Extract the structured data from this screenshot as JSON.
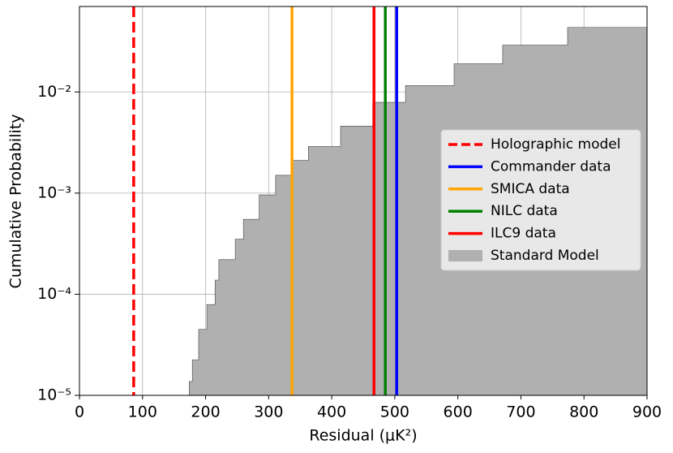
{
  "chart_data": {
    "type": "log_step_area_vlines",
    "xlabel": "Residual (μK²)",
    "ylabel": "Cumulative Probability",
    "xlim": [
      0,
      900
    ],
    "ylim": [
      1e-05,
      0.07
    ],
    "yscale": "log",
    "grid": true,
    "legend": "center right",
    "xticks": [
      0,
      100,
      200,
      300,
      400,
      500,
      600,
      700,
      800,
      900
    ],
    "yticks": [
      {
        "value": 1e-05,
        "label": "10⁻⁵"
      },
      {
        "value": 0.0001,
        "label": "10⁻⁴"
      },
      {
        "value": 0.001,
        "label": "10⁻³"
      },
      {
        "value": 0.01,
        "label": "10⁻²"
      }
    ],
    "series": [
      {
        "name": "Holographic model",
        "color": "#ff0000",
        "linestyle": "dashed",
        "x": 86
      },
      {
        "name": "Commander data",
        "color": "#0000ff",
        "linestyle": "solid",
        "x": 503
      },
      {
        "name": "SMICA data",
        "color": "#ffa500",
        "linestyle": "solid",
        "x": 337
      },
      {
        "name": "NILC data",
        "color": "#008000",
        "linestyle": "solid",
        "x": 485
      },
      {
        "name": "ILC9 data",
        "color": "#ff0000",
        "linestyle": "solid",
        "x": 467
      },
      {
        "name": "Standard Model",
        "color": "#b0b0b0",
        "x": [
          171,
          174,
          179,
          189,
          202,
          215,
          221,
          247,
          260,
          285,
          311,
          337,
          363,
          414,
          465,
          517,
          594,
          671,
          774,
          900
        ],
        "values": [
          1e-05,
          1.37e-05,
          2.25e-05,
          4.5e-05,
          7.9e-05,
          0.000138,
          0.00022,
          0.00035,
          0.00055,
          0.00096,
          0.0015,
          0.0021,
          0.0029,
          0.0046,
          0.0079,
          0.0116,
          0.019,
          0.029,
          0.0435,
          0.067
        ]
      }
    ]
  }
}
